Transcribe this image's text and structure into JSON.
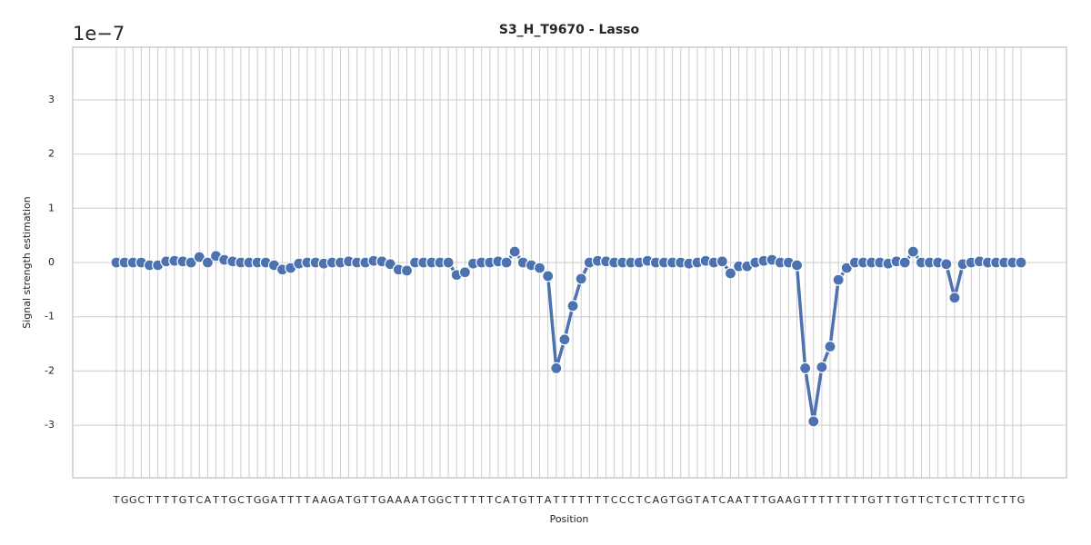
{
  "chart_data": {
    "type": "line",
    "title": "S3_H_T9670 - Lasso",
    "x_label": "Position",
    "y_label": "Signal strength estimation",
    "y_offset_label": "1e−7",
    "categories": [
      "T",
      "G",
      "G",
      "C",
      "T",
      "T",
      "T",
      "T",
      "G",
      "T",
      "C",
      "A",
      "T",
      "T",
      "G",
      "C",
      "T",
      "G",
      "G",
      "A",
      "T",
      "T",
      "T",
      "T",
      "A",
      "A",
      "G",
      "A",
      "T",
      "G",
      "T",
      "T",
      "G",
      "A",
      "A",
      "A",
      "A",
      "T",
      "G",
      "G",
      "C",
      "T",
      "T",
      "T",
      "T",
      "T",
      "C",
      "A",
      "T",
      "G",
      "T",
      "T",
      "A",
      "T",
      "T",
      "T",
      "T",
      "T",
      "T",
      "T",
      "C",
      "C",
      "C",
      "T",
      "C",
      "A",
      "G",
      "T",
      "G",
      "G",
      "T",
      "A",
      "T",
      "C",
      "A",
      "A",
      "T",
      "T",
      "T",
      "G",
      "A",
      "A",
      "G",
      "T",
      "T",
      "T",
      "T",
      "T",
      "T",
      "T",
      "T",
      "G",
      "T",
      "T",
      "T",
      "G",
      "T",
      "T",
      "C",
      "T",
      "C",
      "T",
      "C",
      "T",
      "T",
      "T",
      "C",
      "T",
      "T",
      "G"
    ],
    "series": [
      {
        "name": "Lasso",
        "color": "#4c72b0",
        "values": [
          0,
          0,
          0,
          0,
          -0.05,
          -0.05,
          0.02,
          0.03,
          0.02,
          0,
          0.1,
          0,
          0.12,
          0.05,
          0.02,
          0,
          0,
          0,
          0,
          -0.05,
          -0.13,
          -0.1,
          -0.02,
          0,
          0,
          -0.02,
          0,
          0,
          0.02,
          0,
          0,
          0.03,
          0.02,
          -0.03,
          -0.13,
          -0.15,
          0,
          0,
          0,
          0,
          0,
          -0.23,
          -0.18,
          -0.02,
          0,
          0,
          0.02,
          0,
          0.2,
          0,
          -0.05,
          -0.1,
          -0.25,
          -1.95,
          -1.42,
          -0.8,
          -0.3,
          0,
          0.03,
          0.02,
          0,
          0,
          0,
          0,
          0.03,
          0,
          0,
          0,
          0,
          -0.02,
          0,
          0.03,
          0,
          0.02,
          -0.2,
          -0.07,
          -0.07,
          0,
          0.03,
          0.05,
          0,
          0,
          -0.05,
          -1.95,
          -2.93,
          -1.93,
          -1.55,
          -0.32,
          -0.1,
          0,
          0,
          0,
          0,
          -0.02,
          0.02,
          0,
          0.2,
          0,
          0,
          0,
          -0.03,
          -0.65,
          -0.03,
          0,
          0.02,
          0,
          0,
          0,
          0,
          0
        ]
      }
    ],
    "ylim": [
      -3.97,
      3.97
    ],
    "yticks": [
      -3,
      -2,
      -1,
      0,
      1,
      2,
      3
    ],
    "grid": true
  }
}
